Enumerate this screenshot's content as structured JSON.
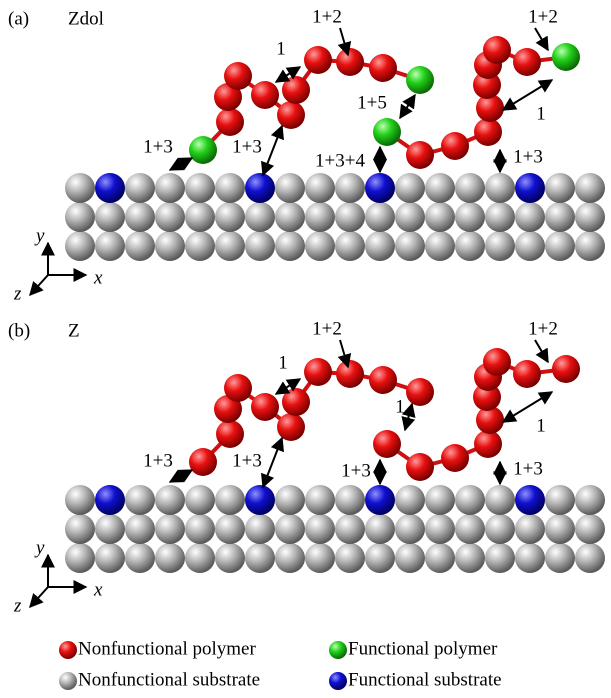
{
  "panels": [
    {
      "label": "(a)",
      "title": "Zdol",
      "axes": {
        "x": "x",
        "y": "y",
        "z": "z"
      },
      "annotations": [
        "1+2",
        "1",
        "1+3",
        "1+3",
        "1+5",
        "1+3+4",
        "1+3",
        "1+2",
        "1"
      ]
    },
    {
      "label": "(b)",
      "title": "Z",
      "axes": {
        "x": "x",
        "y": "y",
        "z": "z"
      },
      "annotations": [
        "1+2",
        "1",
        "1+3",
        "1+3",
        "1",
        "1+3",
        "1+3",
        "1+2",
        "1"
      ]
    }
  ],
  "legend": [
    "Nonfunctional polymer",
    "Functional polymer",
    "Nonfunctional substrate",
    "Functional substrate"
  ]
}
